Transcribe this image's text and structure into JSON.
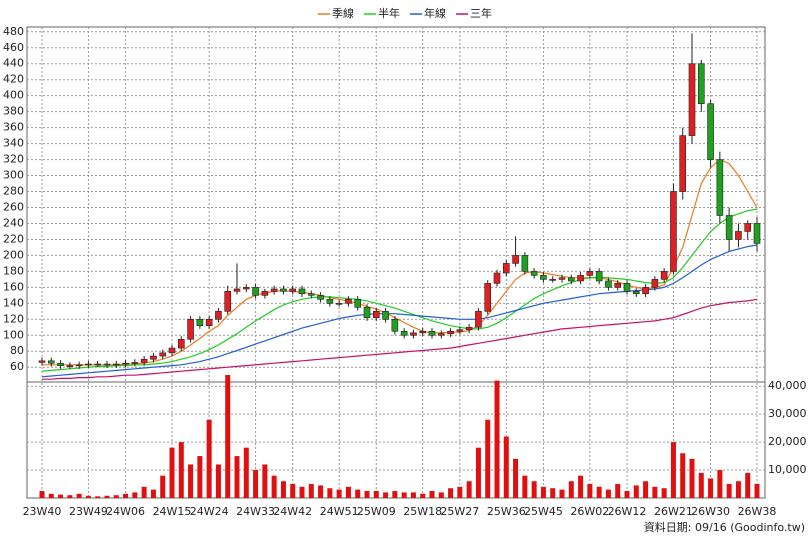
{
  "chart_data": {
    "type": "candlestick",
    "legend": [
      "季線",
      "半年",
      "年線",
      "三年"
    ],
    "footnote": "資料日期: 09/16 (Goodinfo.tw)",
    "up_color": "#e02020",
    "down_color": "#20a020",
    "x": [
      "23W40",
      null,
      null,
      null,
      null,
      "23W49",
      null,
      null,
      null,
      "24W06",
      null,
      null,
      null,
      null,
      "24W15",
      null,
      null,
      null,
      "24W24",
      null,
      null,
      null,
      null,
      "24W33",
      null,
      null,
      null,
      "24W42",
      null,
      null,
      null,
      null,
      "24W51",
      null,
      null,
      null,
      "25W09",
      null,
      null,
      null,
      null,
      "25W18",
      null,
      null,
      null,
      "25W27",
      null,
      null,
      null,
      null,
      "25W36",
      null,
      null,
      null,
      "25W45",
      null,
      null,
      null,
      null,
      "26W02",
      null,
      null,
      null,
      "26W12",
      null,
      null,
      null,
      null,
      "26W21",
      null,
      null,
      null,
      "26W30",
      null,
      null,
      null,
      null,
      "26W38"
    ],
    "open": [
      66,
      68,
      65,
      62,
      62,
      63,
      64,
      64,
      63,
      64,
      65,
      66,
      70,
      74,
      78,
      84,
      95,
      120,
      112,
      120,
      130,
      155,
      158,
      160,
      150,
      155,
      158,
      155,
      158,
      152,
      150,
      145,
      140,
      140,
      145,
      135,
      122,
      130,
      120,
      105,
      100,
      103,
      105,
      100,
      102,
      105,
      107,
      110,
      130,
      165,
      178,
      190,
      200,
      180,
      175,
      170,
      170,
      172,
      168,
      175,
      180,
      168,
      160,
      165,
      155,
      152,
      160,
      170,
      180,
      280,
      350,
      440,
      390,
      320,
      250,
      220,
      230,
      240
    ],
    "high": [
      72,
      72,
      69,
      66,
      67,
      68,
      68,
      68,
      68,
      69,
      70,
      74,
      78,
      82,
      88,
      99,
      124,
      124,
      124,
      134,
      162,
      190,
      164,
      164,
      158,
      162,
      162,
      162,
      162,
      156,
      154,
      149,
      144,
      149,
      149,
      139,
      134,
      134,
      124,
      109,
      107,
      109,
      109,
      106,
      109,
      111,
      114,
      134,
      169,
      182,
      194,
      224,
      204,
      184,
      179,
      174,
      176,
      176,
      179,
      184,
      184,
      172,
      169,
      169,
      159,
      164,
      174,
      184,
      290,
      360,
      478,
      445,
      395,
      330,
      260,
      240,
      244,
      248
    ],
    "low": [
      62,
      61,
      58,
      58,
      58,
      59,
      60,
      59,
      59,
      60,
      61,
      62,
      66,
      70,
      74,
      80,
      91,
      108,
      108,
      116,
      126,
      151,
      154,
      146,
      146,
      151,
      151,
      151,
      148,
      146,
      141,
      136,
      136,
      136,
      131,
      118,
      118,
      116,
      101,
      96,
      96,
      99,
      96,
      96,
      98,
      101,
      103,
      106,
      126,
      161,
      174,
      186,
      176,
      171,
      166,
      166,
      166,
      164,
      164,
      171,
      164,
      156,
      156,
      151,
      148,
      148,
      156,
      166,
      176,
      270,
      340,
      380,
      310,
      240,
      205,
      210,
      220,
      205
    ],
    "close": [
      68,
      65,
      62,
      62,
      63,
      64,
      64,
      63,
      64,
      65,
      66,
      70,
      74,
      78,
      84,
      95,
      120,
      112,
      120,
      130,
      155,
      158,
      160,
      150,
      155,
      158,
      155,
      158,
      152,
      150,
      145,
      140,
      140,
      145,
      135,
      122,
      130,
      120,
      105,
      100,
      103,
      105,
      100,
      102,
      105,
      107,
      110,
      130,
      165,
      178,
      190,
      200,
      180,
      175,
      170,
      170,
      172,
      168,
      175,
      180,
      168,
      160,
      165,
      155,
      152,
      160,
      170,
      180,
      280,
      350,
      440,
      390,
      320,
      250,
      220,
      230,
      240,
      215
    ],
    "series": [
      {
        "name": "季線",
        "color": "#f07820",
        "values": [
          63,
          63,
          63,
          63,
          63,
          63,
          63,
          63,
          63,
          64,
          64,
          65,
          67,
          70,
          74,
          80,
          88,
          96,
          105,
          112,
          125,
          135,
          145,
          150,
          153,
          155,
          156,
          155,
          154,
          152,
          150,
          147,
          145,
          143,
          140,
          136,
          133,
          128,
          122,
          116,
          110,
          105,
          103,
          103,
          104,
          104,
          106,
          112,
          125,
          140,
          155,
          170,
          178,
          180,
          178,
          176,
          174,
          172,
          172,
          172,
          172,
          170,
          167,
          163,
          160,
          158,
          160,
          163,
          185,
          210,
          250,
          290,
          310,
          320,
          315,
          300,
          280,
          260
        ]
      },
      {
        "name": "半年",
        "color": "#22cc22",
        "values": [
          55,
          56,
          57,
          58,
          59,
          60,
          61,
          61,
          62,
          62,
          63,
          63,
          64,
          65,
          67,
          70,
          73,
          77,
          82,
          88,
          95,
          102,
          110,
          118,
          125,
          132,
          138,
          142,
          145,
          147,
          148,
          148,
          147,
          146,
          145,
          143,
          140,
          137,
          134,
          130,
          126,
          122,
          118,
          115,
          112,
          110,
          108,
          108,
          110,
          115,
          122,
          130,
          138,
          146,
          152,
          157,
          162,
          166,
          170,
          172,
          173,
          172,
          171,
          170,
          168,
          166,
          165,
          166,
          172,
          185,
          200,
          215,
          230,
          240,
          248,
          252,
          256,
          258
        ]
      },
      {
        "name": "年線",
        "color": "#2060d0",
        "values": [
          48,
          49,
          50,
          51,
          52,
          53,
          54,
          55,
          56,
          57,
          58,
          59,
          60,
          61,
          62,
          63,
          65,
          67,
          70,
          73,
          77,
          81,
          85,
          89,
          93,
          97,
          101,
          105,
          109,
          112,
          115,
          118,
          121,
          123,
          125,
          126,
          127,
          127,
          127,
          126,
          125,
          124,
          123,
          122,
          121,
          120,
          120,
          120,
          122,
          125,
          128,
          131,
          134,
          137,
          140,
          142,
          144,
          146,
          148,
          150,
          152,
          153,
          154,
          155,
          156,
          157,
          158,
          160,
          165,
          172,
          180,
          188,
          195,
          200,
          205,
          208,
          211,
          213
        ]
      },
      {
        "name": "三年",
        "color": "#c8106a",
        "values": [
          45,
          45,
          46,
          46,
          47,
          47,
          48,
          48,
          49,
          50,
          50,
          51,
          52,
          53,
          54,
          55,
          56,
          57,
          58,
          59,
          60,
          61,
          62,
          63,
          64,
          65,
          66,
          67,
          68,
          69,
          70,
          71,
          72,
          73,
          74,
          75,
          76,
          77,
          78,
          79,
          80,
          81,
          82,
          83,
          84,
          86,
          88,
          90,
          92,
          94,
          96,
          98,
          100,
          102,
          104,
          106,
          108,
          109,
          110,
          111,
          112,
          113,
          114,
          115,
          116,
          117,
          118,
          120,
          122,
          126,
          130,
          134,
          137,
          139,
          141,
          142,
          143,
          145
        ]
      }
    ],
    "ylim": [
      44,
      486
    ],
    "yticks": [
      60,
      80,
      100,
      120,
      140,
      160,
      180,
      200,
      220,
      240,
      260,
      280,
      300,
      320,
      340,
      360,
      380,
      400,
      420,
      440,
      460,
      480
    ],
    "volume": {
      "color": "#e01010",
      "values": [
        2500,
        1500,
        1200,
        1000,
        1500,
        800,
        600,
        800,
        1000,
        1500,
        2000,
        4000,
        3000,
        8000,
        18000,
        20000,
        12000,
        15000,
        28000,
        12000,
        44000,
        15000,
        18000,
        10000,
        12000,
        8000,
        6000,
        5000,
        4000,
        5000,
        4500,
        3500,
        3000,
        4000,
        3000,
        2500,
        2500,
        2000,
        2500,
        2000,
        2000,
        1500,
        2500,
        2000,
        3500,
        4000,
        6000,
        18000,
        28000,
        42000,
        22000,
        14000,
        8000,
        6000,
        4000,
        3500,
        3000,
        6000,
        8000,
        5000,
        4000,
        3000,
        5000,
        2500,
        4500,
        6000,
        4000,
        3500,
        20000,
        16000,
        14000,
        9000,
        7000,
        10000,
        5000,
        6000,
        9000,
        5000
      ],
      "ylim": [
        0,
        41500
      ],
      "yticks": [
        {
          "value": 10000,
          "label": "10,000"
        },
        {
          "value": 20000,
          "label": "20,000"
        },
        {
          "value": 30000,
          "label": "30,000"
        },
        {
          "value": 40000,
          "label": "40,000"
        }
      ]
    }
  }
}
